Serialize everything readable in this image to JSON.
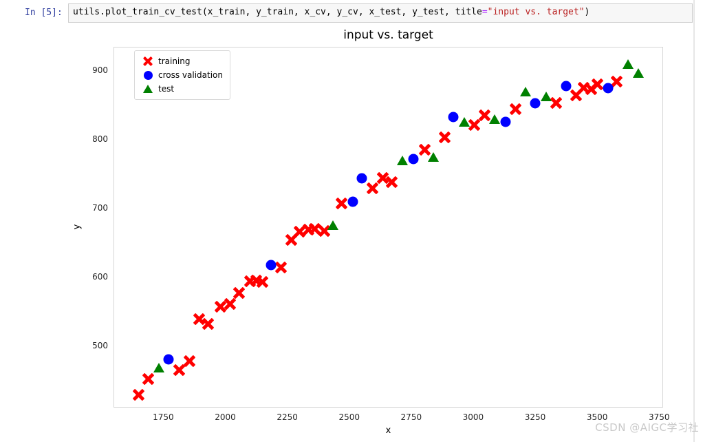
{
  "notebook": {
    "prompt": "In [5]:",
    "code": {
      "pre": "utils.plot_train_cv_test(x_train, y_train, x_cv, y_cv, x_test, y_test, title",
      "operator": "=",
      "string": "\"input vs. target\"",
      "post": ")"
    }
  },
  "watermark": {
    "text": "CSDN @AIGC学习社"
  },
  "colors": {
    "training": "#ff0000",
    "cross_validation": "#0000ff",
    "test": "#008000",
    "prompt_blue": "#303F9F",
    "string_red": "#BA2121",
    "operator_purple": "#AA22FF"
  },
  "chart_data": {
    "type": "scatter",
    "title": "input vs. target",
    "xlabel": "x",
    "ylabel": "y",
    "xlim": [
      1549,
      3766
    ],
    "ylim": [
      411,
      935
    ],
    "xticks": [
      1750,
      2000,
      2250,
      2500,
      2750,
      3000,
      3250,
      3500,
      3750
    ],
    "yticks": [
      500,
      600,
      700,
      800,
      900
    ],
    "grid": false,
    "legend_position": "upper left",
    "series": [
      {
        "name": "training",
        "marker": "x",
        "color": "#ff0000",
        "points": [
          [
            1650,
            430
          ],
          [
            1690,
            453
          ],
          [
            1815,
            466
          ],
          [
            1855,
            479
          ],
          [
            1895,
            540
          ],
          [
            1930,
            533
          ],
          [
            1980,
            558
          ],
          [
            2020,
            562
          ],
          [
            2055,
            578
          ],
          [
            2100,
            595
          ],
          [
            2125,
            596
          ],
          [
            2150,
            594
          ],
          [
            2225,
            615
          ],
          [
            2265,
            655
          ],
          [
            2300,
            667
          ],
          [
            2335,
            670
          ],
          [
            2360,
            671
          ],
          [
            2400,
            668
          ],
          [
            2470,
            708
          ],
          [
            2595,
            730
          ],
          [
            2635,
            745
          ],
          [
            2670,
            739
          ],
          [
            2805,
            786
          ],
          [
            2885,
            804
          ],
          [
            3005,
            822
          ],
          [
            3045,
            836
          ],
          [
            3170,
            845
          ],
          [
            3335,
            854
          ],
          [
            3415,
            865
          ],
          [
            3445,
            876
          ],
          [
            3475,
            874
          ],
          [
            3500,
            881
          ],
          [
            3580,
            885
          ]
        ]
      },
      {
        "name": "cross validation",
        "marker": "circle",
        "color": "#0000ff",
        "points": [
          [
            1770,
            481
          ],
          [
            2185,
            618
          ],
          [
            2515,
            710
          ],
          [
            2550,
            744
          ],
          [
            2760,
            772
          ],
          [
            2920,
            833
          ],
          [
            3130,
            826
          ],
          [
            3250,
            853
          ],
          [
            3375,
            878
          ],
          [
            3545,
            875
          ]
        ]
      },
      {
        "name": "test",
        "marker": "triangle",
        "color": "#008000",
        "points": [
          [
            1733,
            469
          ],
          [
            2435,
            676
          ],
          [
            2715,
            770
          ],
          [
            2840,
            775
          ],
          [
            2965,
            826
          ],
          [
            3085,
            830
          ],
          [
            3210,
            870
          ],
          [
            3295,
            863
          ],
          [
            3625,
            910
          ],
          [
            3665,
            897
          ]
        ]
      }
    ]
  }
}
